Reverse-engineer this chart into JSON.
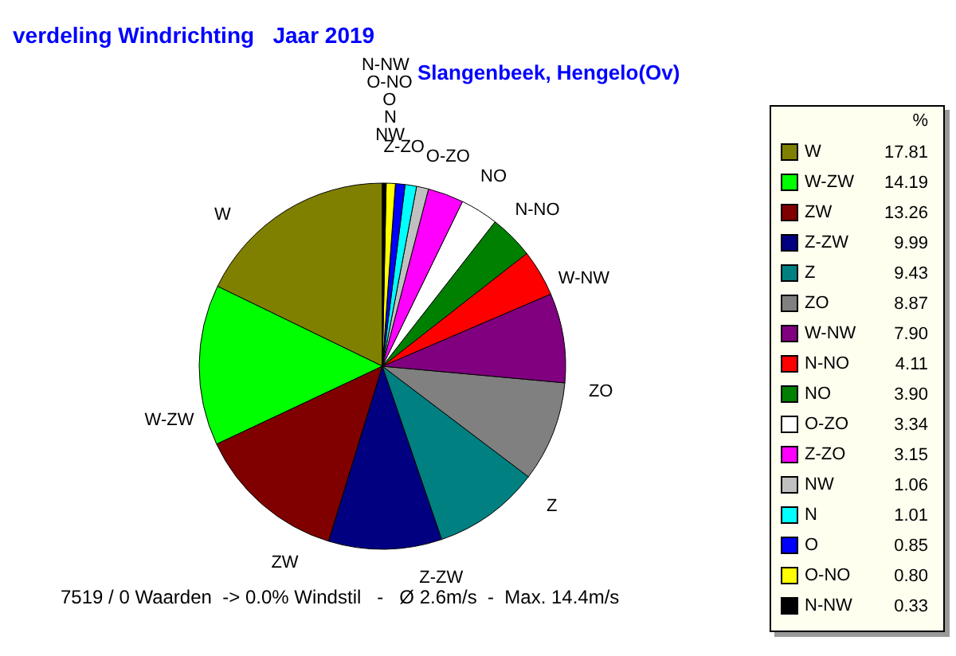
{
  "chart_data": {
    "type": "pie",
    "title": "verdeling Windrichting   Jaar 2019",
    "subtitle": "Slangenbeek, Hengelo(Ov)",
    "legend_title": "%",
    "categories": [
      "W",
      "W-ZW",
      "ZW",
      "Z-ZW",
      "Z",
      "ZO",
      "W-NW",
      "N-NO",
      "NO",
      "O-ZO",
      "Z-ZO",
      "NW",
      "N",
      "O",
      "O-NO",
      "N-NW"
    ],
    "values": [
      17.81,
      14.19,
      13.26,
      9.99,
      9.43,
      8.87,
      7.9,
      4.11,
      3.9,
      3.34,
      3.15,
      1.06,
      1.01,
      0.85,
      0.8,
      0.33
    ],
    "value_labels": [
      "17.81",
      "14.19",
      "13.26",
      "9.99",
      "9.43",
      "8.87",
      "7.90",
      "4.11",
      "3.90",
      "3.34",
      "3.15",
      "1.06",
      "1.01",
      "0.85",
      "0.80",
      "0.33"
    ],
    "colors": [
      "#808000",
      "#00ff00",
      "#800000",
      "#000080",
      "#008080",
      "#808080",
      "#800080",
      "#ff0000",
      "#008000",
      "#ffffff",
      "#ff00ff",
      "#c0c0c0",
      "#00ffff",
      "#0000ff",
      "#ffff00",
      "#000000"
    ],
    "legend": "right",
    "annotations": [
      "7519 / 0 Waarden  -> 0.0% Windstil   -   Ø 2.6m/s  -  Max. 14.4m/s"
    ]
  }
}
